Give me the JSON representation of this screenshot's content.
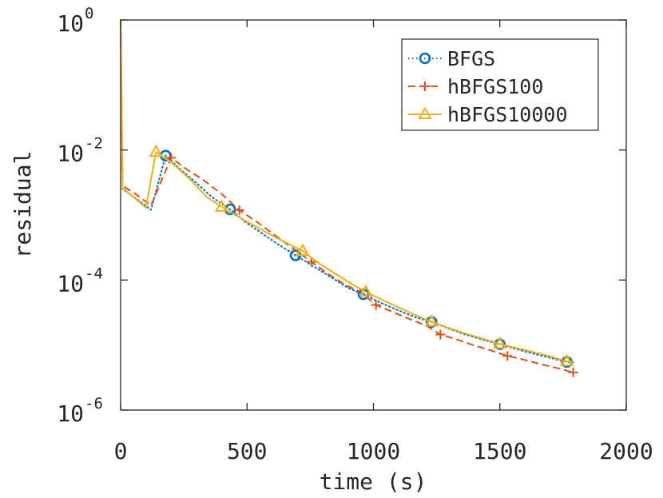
{
  "chart_data": {
    "type": "line",
    "title": "",
    "xlabel": "time (s)",
    "ylabel": "residual",
    "xlim": [
      0,
      2000
    ],
    "ylim": [
      1e-06,
      1
    ],
    "yscale": "log",
    "grid": false,
    "legend_position": "top-right",
    "x_ticks": [
      {
        "value": 0,
        "label": "0"
      },
      {
        "value": 500,
        "label": "500"
      },
      {
        "value": 1000,
        "label": "1000"
      },
      {
        "value": 1500,
        "label": "1500"
      },
      {
        "value": 2000,
        "label": "2000"
      }
    ],
    "y_ticks": [
      {
        "value": 1e-06,
        "base": "10",
        "exp": "-6"
      },
      {
        "value": 0.0001,
        "base": "10",
        "exp": "-4"
      },
      {
        "value": 0.01,
        "base": "10",
        "exp": "-2"
      },
      {
        "value": 1,
        "base": "10",
        "exp": "0"
      }
    ],
    "series": [
      {
        "name": "BFGS",
        "color": "#0072BD",
        "dash": "dotted",
        "marker": "circle",
        "x": [
          0,
          8,
          60,
          120,
          178,
          240,
          300,
          360,
          433,
          500,
          560,
          620,
          692,
          760,
          830,
          900,
          960,
          1030,
          1100,
          1170,
          1230,
          1300,
          1360,
          1430,
          1500,
          1560,
          1620,
          1690,
          1765,
          1790
        ],
        "y": [
          1,
          0.0025,
          0.0018,
          0.0012,
          0.0082,
          0.0049,
          0.0031,
          0.0019,
          0.00122,
          0.00075,
          0.00052,
          0.00036,
          0.00024,
          0.000165,
          0.000112,
          7.55e-05,
          6.05e-05,
          4.45e-05,
          3.4e-05,
          2.65e-05,
          2.27e-05,
          1.78e-05,
          1.47e-05,
          1.22e-05,
          1.03e-05,
          8.8e-06,
          7.6e-06,
          6.5e-06,
          5.5e-06,
          5.4e-06
        ],
        "marker_x": [
          178,
          433,
          692,
          960,
          1230,
          1500,
          1765
        ],
        "marker_y": [
          0.0082,
          0.00122,
          0.00024,
          6.05e-05,
          2.27e-05,
          1.03e-05,
          5.5e-06
        ]
      },
      {
        "name": "hBFGS100",
        "color": "#D95319",
        "dash": "dashed",
        "marker": "plus",
        "x": [
          0,
          8,
          60,
          120,
          200,
          260,
          330,
          400,
          470,
          540,
          610,
          680,
          755,
          820,
          890,
          950,
          1010,
          1080,
          1150,
          1210,
          1265,
          1330,
          1390,
          1460,
          1530,
          1600,
          1660,
          1730,
          1790
        ],
        "y": [
          1,
          0.0028,
          0.0021,
          0.0014,
          0.0076,
          0.0051,
          0.0034,
          0.0021,
          0.00119,
          0.00078,
          0.00049,
          0.00031,
          0.00019,
          0.000125,
          8.35e-05,
          6.55e-05,
          4.13e-05,
          3.18e-05,
          2.45e-05,
          1.98e-05,
          1.45e-05,
          1.22e-05,
          1.01e-05,
          8.4e-06,
          6.8e-06,
          5.9e-06,
          5.1e-06,
          4.4e-06,
          3.8e-06
        ],
        "marker_x": [
          200,
          470,
          755,
          1010,
          1265,
          1530,
          1790
        ],
        "marker_y": [
          0.0076,
          0.00119,
          0.00019,
          4.13e-05,
          1.45e-05,
          6.8e-06,
          3.8e-06
        ]
      },
      {
        "name": "hBFGS10000",
        "color": "#EDB120",
        "dash": "solid",
        "marker": "triangle",
        "x": [
          0,
          8,
          50,
          100,
          140,
          200,
          270,
          340,
          400,
          470,
          540,
          610,
          720,
          790,
          860,
          920,
          970,
          1040,
          1110,
          1170,
          1230,
          1300,
          1370,
          1440,
          1500,
          1570,
          1640,
          1700,
          1765,
          1790
        ],
        "y": [
          1,
          0.0026,
          0.0019,
          0.0013,
          0.0093,
          0.0065,
          0.0037,
          0.0019,
          0.00133,
          0.00092,
          0.00065,
          0.00046,
          0.00028,
          0.000175,
          0.000118,
          8.45e-05,
          6.55e-05,
          4.85e-05,
          3.65e-05,
          2.85e-05,
          2.28e-05,
          1.82e-05,
          1.48e-05,
          1.23e-05,
          1.04e-05,
          8.9e-06,
          7.7e-06,
          6.7e-06,
          5.6e-06,
          5.5e-06
        ],
        "marker_x": [
          140,
          400,
          720,
          970,
          1230,
          1500,
          1765
        ],
        "marker_y": [
          0.0093,
          0.00133,
          0.00028,
          6.55e-05,
          2.28e-05,
          1.04e-05,
          5.6e-06
        ]
      }
    ]
  }
}
